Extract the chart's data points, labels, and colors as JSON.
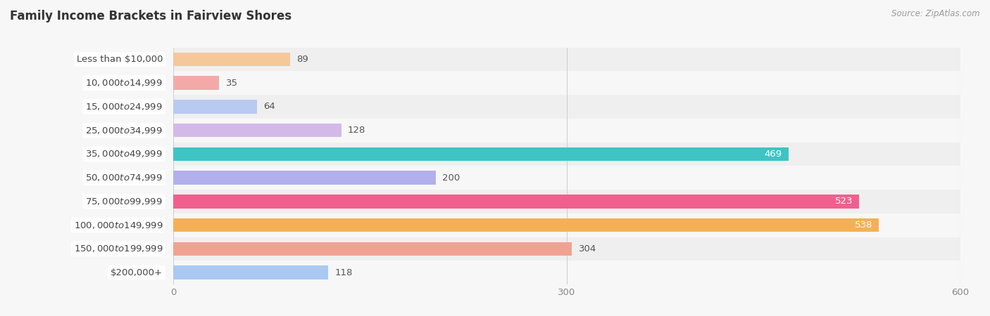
{
  "title": "Family Income Brackets in Fairview Shores",
  "source": "Source: ZipAtlas.com",
  "categories": [
    "Less than $10,000",
    "$10,000 to $14,999",
    "$15,000 to $24,999",
    "$25,000 to $34,999",
    "$35,000 to $49,999",
    "$50,000 to $74,999",
    "$75,000 to $99,999",
    "$100,000 to $149,999",
    "$150,000 to $199,999",
    "$200,000+"
  ],
  "values": [
    89,
    35,
    64,
    128,
    469,
    200,
    523,
    538,
    304,
    118
  ],
  "bar_colors": [
    "#f5c89a",
    "#f4a9a9",
    "#b9caf0",
    "#d3b9e8",
    "#3ec4c4",
    "#b2b0ea",
    "#f0608e",
    "#f5b057",
    "#f0a292",
    "#a9c9f2"
  ],
  "dot_colors": [
    "#f5a050",
    "#f07070",
    "#7090e0",
    "#b080d0",
    "#20a8a8",
    "#9080d0",
    "#e03070",
    "#f09020",
    "#e07060",
    "#7090d0"
  ],
  "xlim": [
    0,
    600
  ],
  "xticks": [
    0,
    300,
    600
  ],
  "value_label_inside": [
    false,
    false,
    false,
    false,
    true,
    false,
    true,
    true,
    false,
    false
  ],
  "bg_color": "#f7f7f7",
  "row_bg_even": "#efefef",
  "row_bg_odd": "#f7f7f7",
  "title_fontsize": 12,
  "bar_height": 0.58,
  "bar_label_fontsize": 9.5,
  "cat_label_fontsize": 9.5,
  "label_color": "#444444",
  "value_color_inside": "#ffffff",
  "value_color_outside": "#555555",
  "grid_color": "#d0d0d0",
  "tick_color": "#888888"
}
